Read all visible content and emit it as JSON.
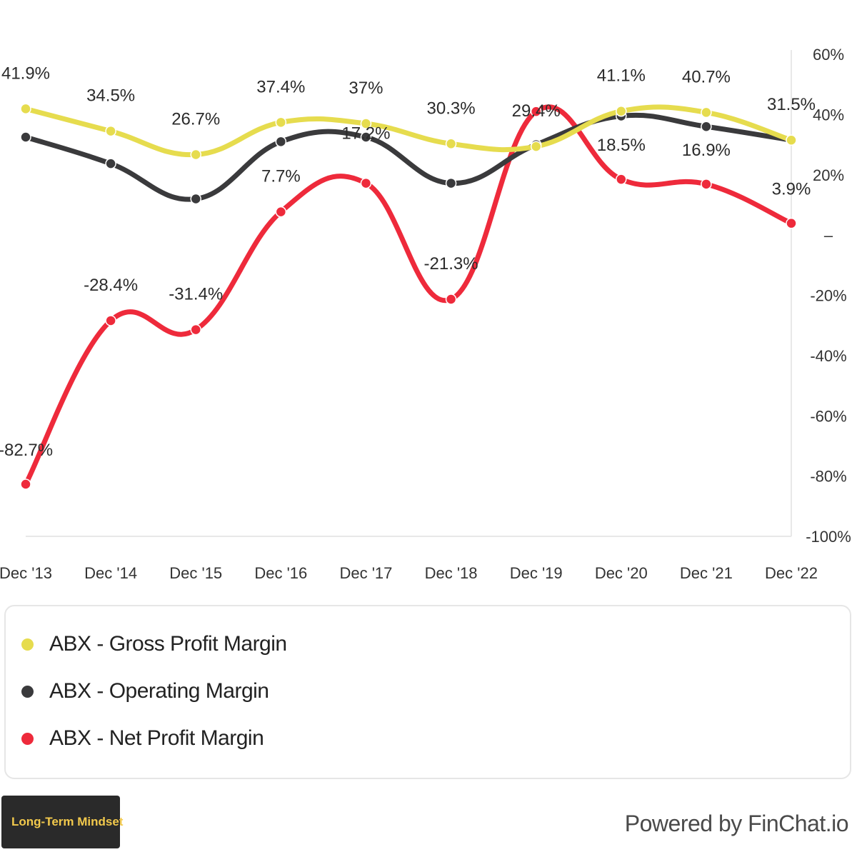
{
  "chart_data": {
    "type": "line",
    "title": "",
    "categories": [
      "Dec '13",
      "Dec '14",
      "Dec '15",
      "Dec '16",
      "Dec '17",
      "Dec '18",
      "Dec '19",
      "Dec '20",
      "Dec '21",
      "Dec '22"
    ],
    "series": [
      {
        "name": "ABX - Gross Profit Margin",
        "color": "#e6dc4e",
        "values": [
          41.9,
          34.5,
          26.7,
          37.4,
          37.0,
          30.3,
          29.4,
          41.1,
          40.7,
          31.5
        ],
        "labels": [
          "41.9%",
          "34.5%",
          "26.7%",
          "37.4%",
          "37%",
          "30.3%",
          "29.4%",
          "41.1%",
          "40.7%",
          "31.5%"
        ]
      },
      {
        "name": "ABX - Operating Margin",
        "color": "#3a3a3c",
        "values": [
          32.5,
          23.7,
          12.0,
          31.0,
          32.5,
          17.2,
          30.0,
          39.5,
          36.0,
          31.5
        ],
        "labels": []
      },
      {
        "name": "ABX - Net Profit Margin",
        "color": "#ee2a3b",
        "values": [
          -82.7,
          -28.4,
          -31.4,
          7.7,
          17.2,
          -21.3,
          41.0,
          18.5,
          16.9,
          3.9
        ],
        "labels": [
          "-82.7%",
          "-28.4%",
          "-31.4%",
          "7.7%",
          "17.2%",
          "-21.3%",
          "",
          "18.5%",
          "16.9%",
          "3.9%"
        ]
      }
    ],
    "y_axis": {
      "side": "right",
      "ylim": [
        -100,
        60
      ],
      "ticks": [
        60,
        40,
        20,
        0,
        -20,
        -40,
        -60,
        -80,
        -100
      ],
      "tick_labels": [
        "60%",
        "40%",
        "20%",
        "–",
        "-20%",
        "-40%",
        "-60%",
        "-80%",
        "-100%"
      ]
    },
    "grid": false,
    "legend": "bottom"
  },
  "legend": {
    "items": [
      {
        "label": "ABX - Gross Profit Margin",
        "color": "#e6dc4e"
      },
      {
        "label": "ABX - Operating Margin",
        "color": "#3a3a3c"
      },
      {
        "label": "ABX - Net Profit Margin",
        "color": "#ee2a3b"
      }
    ]
  },
  "footer": {
    "badge_text": "Long-Term Mindset",
    "badge_icon": "lightbulb-brain-icon",
    "powered_by": "Powered by FinChat.io"
  }
}
